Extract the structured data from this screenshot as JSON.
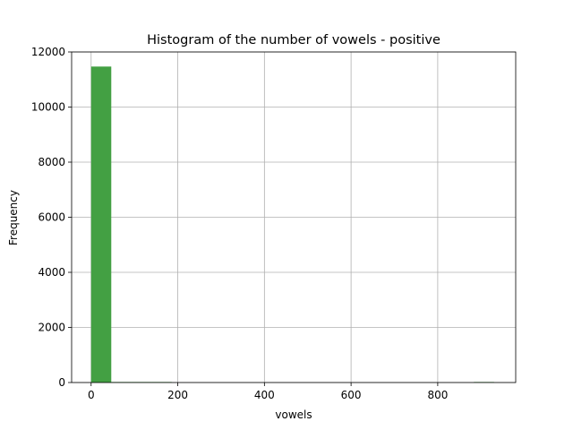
{
  "chart_data": {
    "type": "bar",
    "subtype": "histogram",
    "title": "Histogram of the number of vowels - positive",
    "xlabel": "vowels",
    "ylabel": "Frequency",
    "xlim": [
      -45,
      980
    ],
    "ylim": [
      0,
      12000
    ],
    "x_ticks": [
      0,
      200,
      400,
      600,
      800
    ],
    "y_ticks": [
      0,
      2000,
      4000,
      6000,
      8000,
      10000,
      12000
    ],
    "grid": true,
    "bar_color": "#43a043",
    "bins": [
      {
        "start": 0,
        "end": 46.5,
        "count": 11470
      },
      {
        "start": 46.5,
        "end": 93,
        "count": 10
      },
      {
        "start": 93,
        "end": 139.5,
        "count": 2
      },
      {
        "start": 139.5,
        "end": 186,
        "count": 1
      },
      {
        "start": 186,
        "end": 232.5,
        "count": 0
      },
      {
        "start": 232.5,
        "end": 279,
        "count": 0
      },
      {
        "start": 279,
        "end": 325.5,
        "count": 0
      },
      {
        "start": 325.5,
        "end": 372,
        "count": 0
      },
      {
        "start": 372,
        "end": 418.5,
        "count": 0
      },
      {
        "start": 418.5,
        "end": 465,
        "count": 0
      },
      {
        "start": 465,
        "end": 511.5,
        "count": 0
      },
      {
        "start": 511.5,
        "end": 558,
        "count": 0
      },
      {
        "start": 558,
        "end": 604.5,
        "count": 0
      },
      {
        "start": 604.5,
        "end": 651,
        "count": 0
      },
      {
        "start": 651,
        "end": 697.5,
        "count": 0
      },
      {
        "start": 697.5,
        "end": 744,
        "count": 0
      },
      {
        "start": 744,
        "end": 790.5,
        "count": 0
      },
      {
        "start": 790.5,
        "end": 837,
        "count": 0
      },
      {
        "start": 837,
        "end": 883.5,
        "count": 0
      },
      {
        "start": 883.5,
        "end": 930,
        "count": 1
      }
    ]
  }
}
